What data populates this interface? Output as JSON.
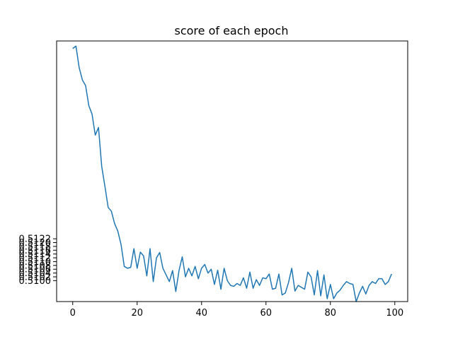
{
  "chart_data": {
    "type": "line",
    "title": "score of each epoch",
    "xlabel": "",
    "ylabel": "",
    "xlim": [
      -5,
      104
    ],
    "ylim": [
      0.5089,
      0.5226
    ],
    "xticks": [
      0,
      20,
      40,
      60,
      80,
      100
    ],
    "xtick_labels": [
      "0",
      "20",
      "40",
      "60",
      "80",
      "100"
    ],
    "yticks": [
      0.51,
      0.5102,
      0.5104,
      0.5106,
      0.5108,
      0.511,
      0.5112,
      0.5114,
      0.5116,
      0.5118,
      0.512,
      0.5122
    ],
    "ytick_labels": [
      "0.5100",
      "0.5102",
      "0.5104",
      "0.5106",
      "0.5108",
      "0.5110",
      "0.5112",
      "0.5114",
      "0.5116",
      "0.5118",
      "0.5120",
      "0.5122"
    ],
    "grid": false,
    "legend": "none",
    "series": [
      {
        "color": "#1f77b4",
        "x": [
          0,
          1,
          2,
          3,
          4,
          5,
          6,
          7,
          8,
          9,
          10,
          11,
          12,
          13,
          14,
          15,
          16,
          17,
          18,
          19,
          20,
          21,
          22,
          23,
          24,
          25,
          26,
          27,
          28,
          29,
          30,
          31,
          32,
          33,
          34,
          35,
          36,
          37,
          38,
          39,
          40,
          41,
          42,
          43,
          44,
          45,
          46,
          47,
          48,
          49,
          50,
          51,
          52,
          53,
          54,
          55,
          56,
          57,
          58,
          59,
          60,
          61,
          62,
          63,
          64,
          65,
          66,
          67,
          68,
          69,
          70,
          71,
          72,
          73,
          74,
          75,
          76,
          77,
          78,
          79,
          80,
          81,
          82,
          83,
          84,
          85,
          86,
          87,
          88,
          89,
          90,
          91,
          92,
          93,
          94,
          95,
          96,
          97,
          98,
          99
        ],
        "values": [
          0.5222,
          0.52233,
          0.5212,
          0.52055,
          0.52025,
          0.5192,
          0.51875,
          0.51765,
          0.51805,
          0.516,
          0.51495,
          0.51385,
          0.51365,
          0.513,
          0.5126,
          0.5119,
          0.51075,
          0.51065,
          0.5107,
          0.51168,
          0.51065,
          0.5115,
          0.5113,
          0.51025,
          0.51168,
          0.50995,
          0.5112,
          0.51148,
          0.51065,
          0.5103,
          0.50995,
          0.51053,
          0.50943,
          0.51053,
          0.51125,
          0.5102,
          0.51065,
          0.51025,
          0.51075,
          0.5101,
          0.51065,
          0.51085,
          0.5104,
          0.5106,
          0.5098,
          0.51055,
          0.50955,
          0.51065,
          0.51,
          0.50975,
          0.5097,
          0.50985,
          0.50975,
          0.51015,
          0.5096,
          0.51045,
          0.5096,
          0.51005,
          0.50975,
          0.51015,
          0.5101,
          0.51035,
          0.50955,
          0.5096,
          0.51035,
          0.50925,
          0.50935,
          0.5099,
          0.51065,
          0.50945,
          0.50975,
          0.50965,
          0.50955,
          0.51045,
          0.5102,
          0.50925,
          0.51053,
          0.5092,
          0.5103,
          0.50905,
          0.5098,
          0.50905,
          0.50935,
          0.5095,
          0.50975,
          0.50995,
          0.50985,
          0.5098,
          0.5089,
          0.50935,
          0.5097,
          0.5093,
          0.50975,
          0.50995,
          0.50985,
          0.5101,
          0.5101,
          0.5098,
          0.50995,
          0.51035
        ]
      }
    ]
  }
}
